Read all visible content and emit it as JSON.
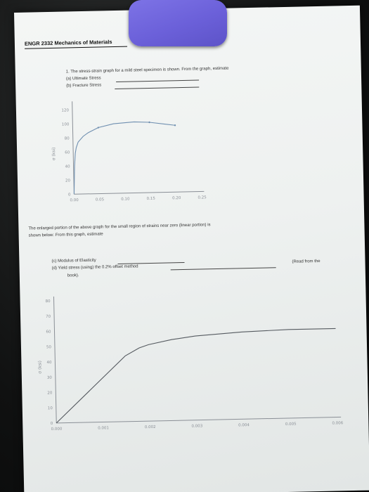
{
  "header": {
    "course": "ENGR 2332 Mechanics of Materials"
  },
  "questions": {
    "q1": "1.   The stress-strain graph for a mild steel specimen is shown.  From the graph, estimate",
    "qa": "(a)  Ultimate Stress",
    "qb": "(b)  Fracture Stress",
    "enlarged_1": "The enlarged portion of the above graph for the small region of strains near zero (linear portion) is",
    "enlarged_2": "shown below:  From this graph, estimate",
    "qc": "(c)   Modulus of Elasticity",
    "qd": "(d)   Yield stress (using) the 0.2% offset method",
    "qd_note": "(Read from the",
    "qd_note2": "book)."
  },
  "chart_data": [
    {
      "type": "line",
      "title": "",
      "xlabel": "",
      "ylabel": "σ (ksi)",
      "xlim": [
        0,
        0.25
      ],
      "ylim": [
        0,
        120
      ],
      "x_ticks": [
        "0.00",
        "0.05",
        "0.10",
        "0.15",
        "0.20",
        "0.25"
      ],
      "y_ticks": [
        "0",
        "20",
        "40",
        "60",
        "80",
        "100",
        "120"
      ],
      "grid": false,
      "series": [
        {
          "color": "#6f8fb0",
          "x": [
            0,
            0.002,
            0.004,
            0.006,
            0.01,
            0.02,
            0.03,
            0.05,
            0.08,
            0.12,
            0.15,
            0.18,
            0.2
          ],
          "y": [
            0,
            40,
            58,
            66,
            74,
            82,
            87,
            94,
            99,
            101,
            100,
            97,
            95
          ]
        }
      ]
    },
    {
      "type": "line",
      "title": "",
      "xlabel": "",
      "ylabel": "σ (ksi)",
      "xlim": [
        0,
        0.006
      ],
      "ylim": [
        0,
        80
      ],
      "x_ticks": [
        "0.000",
        "0.001",
        "0.002",
        "0.003",
        "0.004",
        "0.005",
        "0.006"
      ],
      "y_ticks": [
        "0",
        "10",
        "20",
        "30",
        "40",
        "50",
        "60",
        "70",
        "80"
      ],
      "grid": false,
      "series": [
        {
          "color": "#555a60",
          "x": [
            0,
            0.0015,
            0.0018,
            0.002,
            0.0025,
            0.003,
            0.004,
            0.005,
            0.006
          ],
          "y": [
            0,
            43,
            48,
            50,
            53,
            55,
            57,
            58,
            58
          ]
        }
      ]
    }
  ]
}
